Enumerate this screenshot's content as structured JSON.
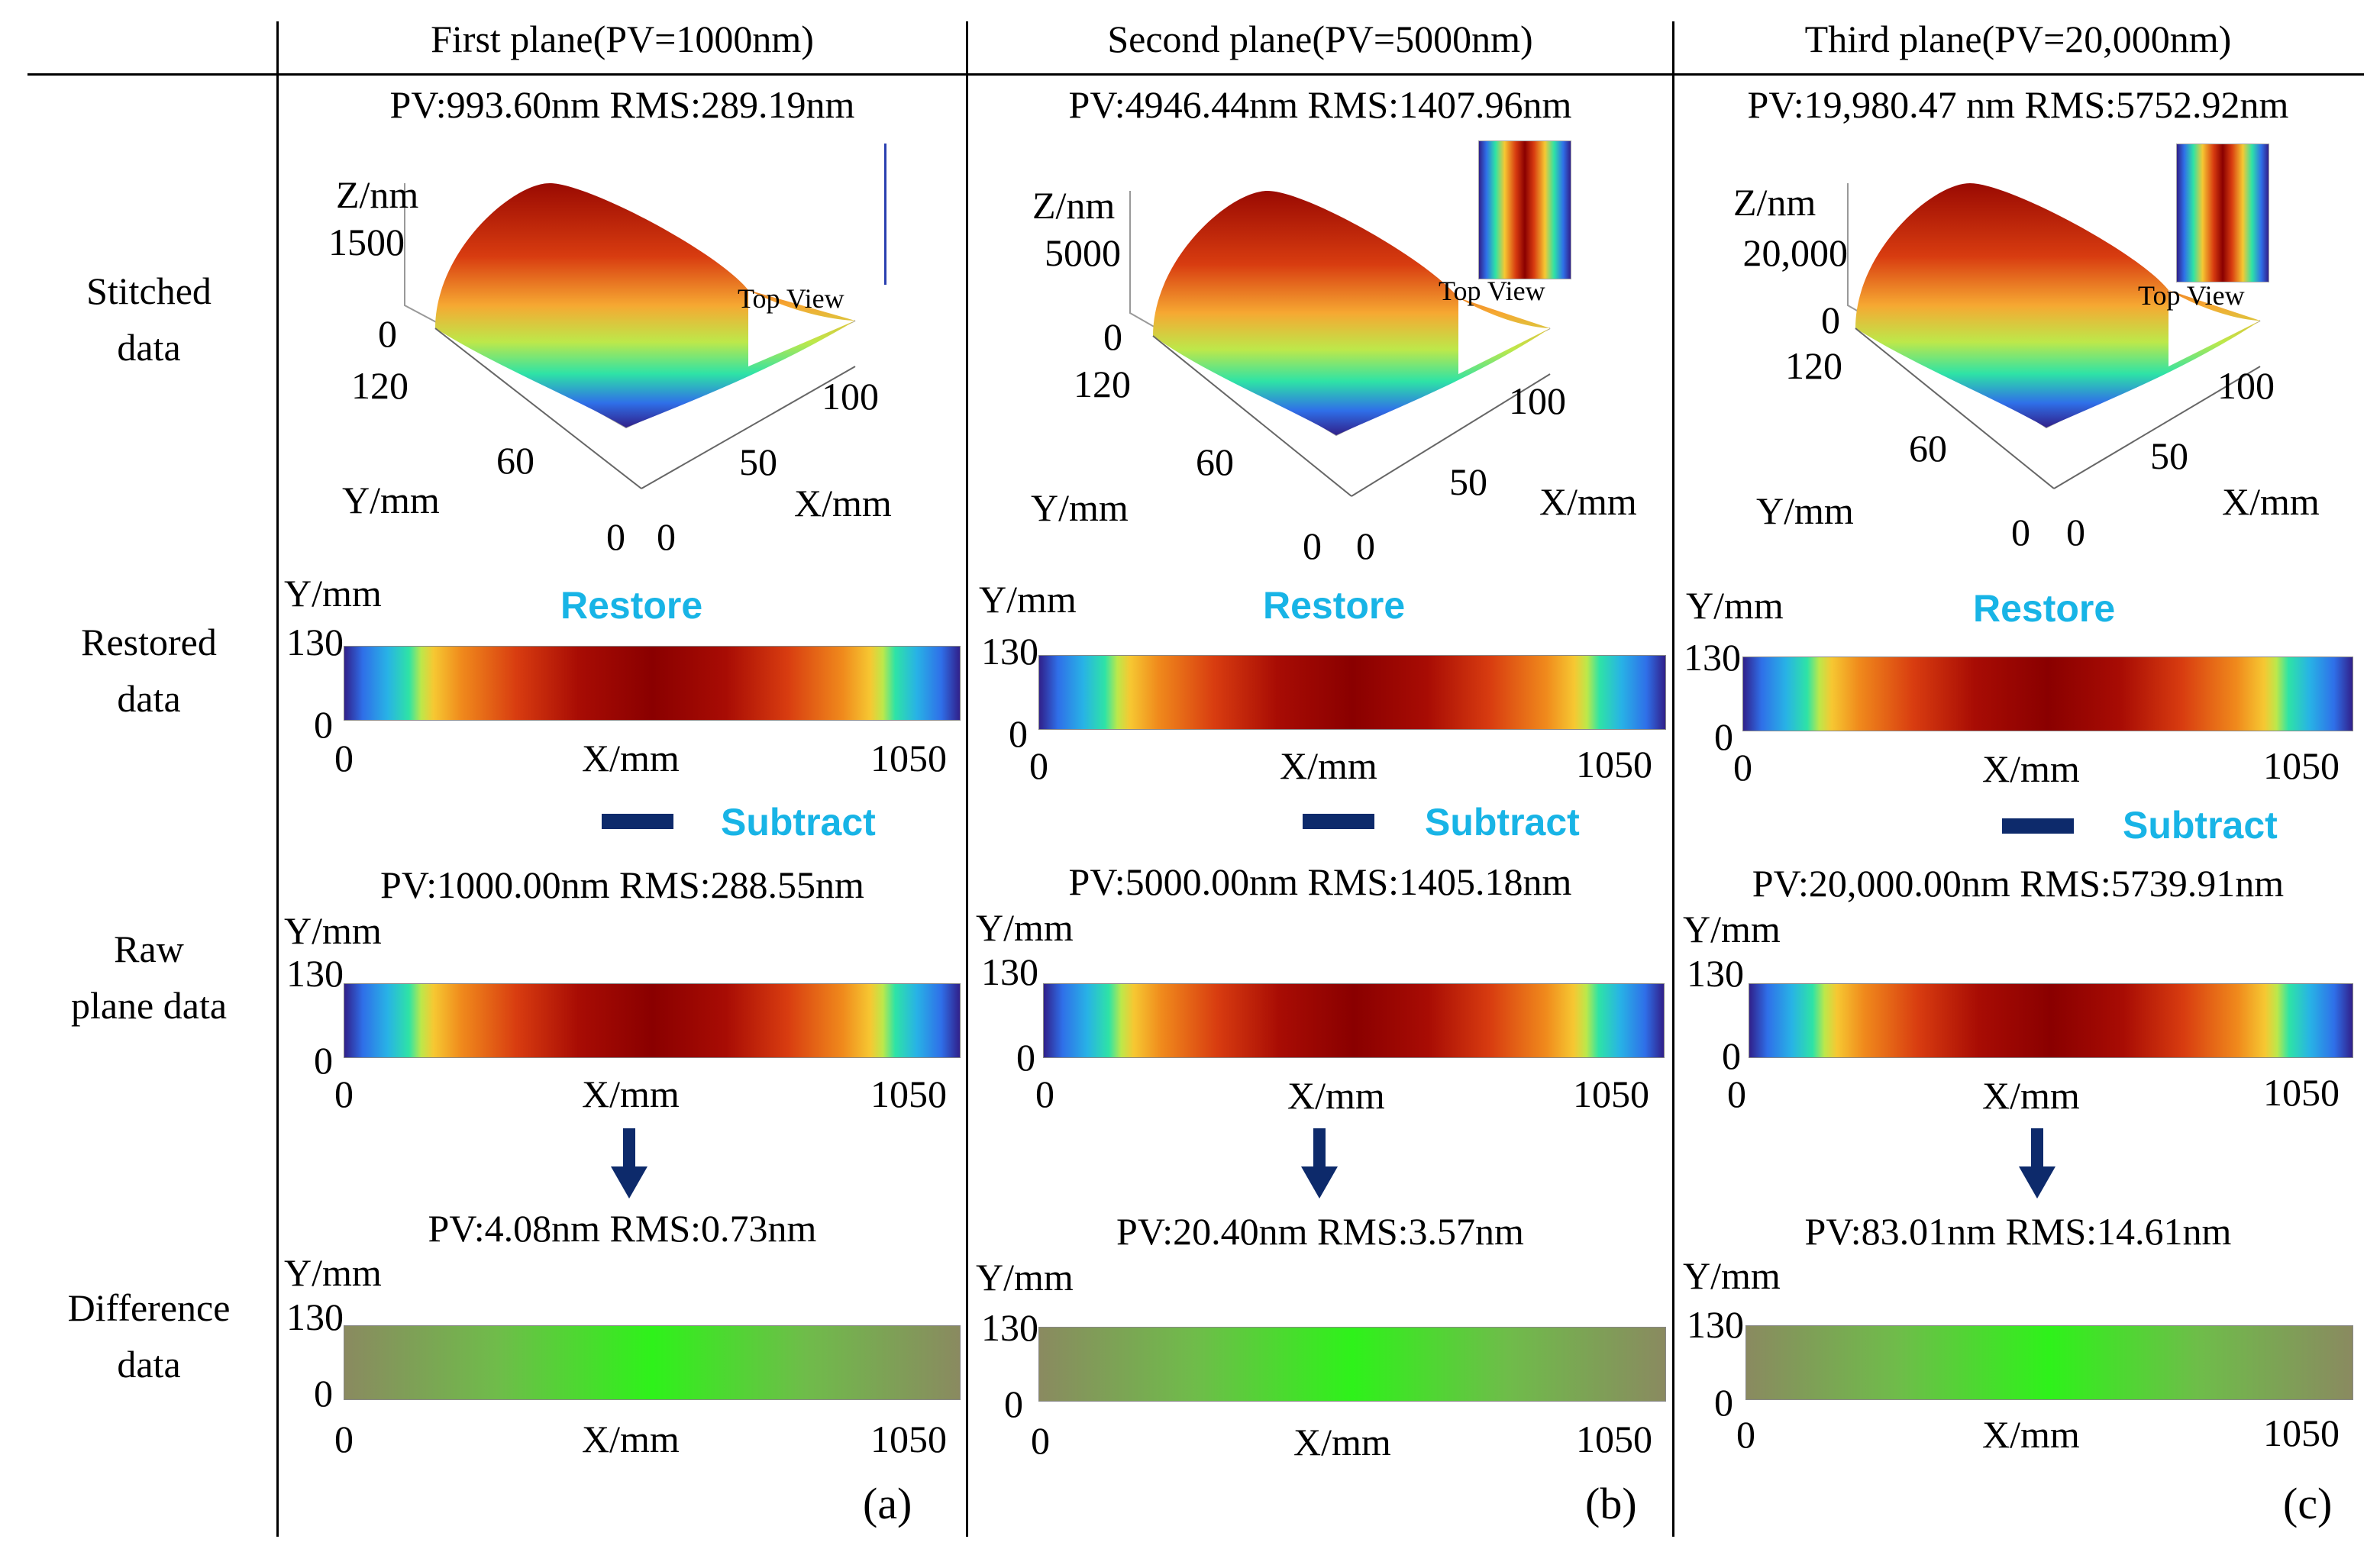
{
  "headers": [
    "First plane(PV=1000nm)",
    "Second plane(PV=5000nm)",
    "Third plane(PV=20,000nm)"
  ],
  "row_labels": {
    "stitched": [
      "Stitched",
      "data"
    ],
    "restored": [
      "Restored",
      "data"
    ],
    "raw": [
      "Raw",
      "plane data"
    ],
    "difference": [
      "Difference",
      "data"
    ]
  },
  "panels": [
    {
      "stitched_stats": "PV:993.60nm RMS:289.19nm",
      "raw_stats": "PV:1000.00nm RMS:288.55nm",
      "diff_stats": "PV:4.08nm RMS:0.73nm",
      "z_max": "1500",
      "y_tick_mid": "60",
      "letter": "(a)"
    },
    {
      "stitched_stats": "PV:4946.44nm RMS:1407.96nm",
      "raw_stats": "PV:5000.00nm RMS:1405.18nm",
      "diff_stats": "PV:20.40nm RMS:3.57nm",
      "z_max": "5000",
      "y_tick_mid": "60",
      "letter": "(b)"
    },
    {
      "stitched_stats": "PV:19,980.47 nm RMS:5752.92nm",
      "raw_stats": "PV:20,000.00nm RMS:5739.91nm",
      "diff_stats": "PV:83.01nm RMS:14.61nm",
      "z_max": "20,000",
      "y_tick_mid": "60",
      "letter": "(c)"
    }
  ],
  "axis": {
    "z_label": "Z/nm",
    "y_label": "Y/mm",
    "x_label": "X/mm",
    "z_zero": "0",
    "y_top": "120",
    "y_zero": "0",
    "x_zero": "0",
    "x_mid": "50",
    "x_top": "100",
    "map_y_max": "130",
    "map_y_min": "0",
    "map_x_min": "0",
    "map_x_max": "1050",
    "top_view": "Top View"
  },
  "annotations": {
    "restore": "Restore",
    "subtract": "Subtract"
  },
  "colors": {
    "restore_text": "#18b4e6",
    "minus_bar": "#0d2a6b",
    "arrow": "#0d2a6b"
  }
}
